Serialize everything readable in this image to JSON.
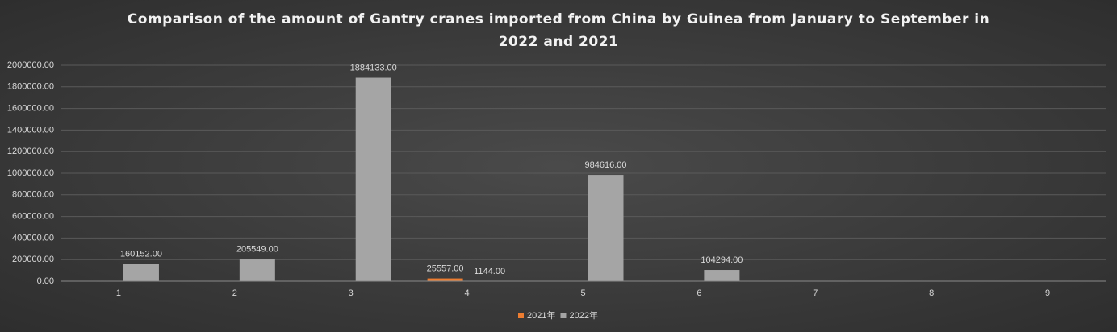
{
  "chart_data": {
    "type": "bar",
    "title": "Comparison of the amount of Gantry cranes imported from China by Guinea from January to September in 2022 and 2021",
    "categories": [
      "1",
      "2",
      "3",
      "4",
      "5",
      "6",
      "7",
      "8",
      "9"
    ],
    "series": [
      {
        "name": "2021年",
        "color": "#ed7d31",
        "values": [
          null,
          null,
          null,
          25557,
          null,
          null,
          null,
          null,
          null
        ],
        "value_labels": [
          null,
          null,
          null,
          "25557.00",
          null,
          null,
          null,
          null,
          null
        ]
      },
      {
        "name": "2022年",
        "color": "#a5a5a5",
        "values": [
          160152,
          205549,
          1884133,
          1144,
          984616,
          104294,
          null,
          null,
          null
        ],
        "value_labels": [
          "160152.00",
          "205549.00",
          "1884133.00",
          "1144.00",
          "984616.00",
          "104294.00",
          null,
          null,
          null
        ]
      }
    ],
    "ylim": [
      0,
      2000000
    ],
    "yticks": [
      {
        "value": 0,
        "label": "0.00"
      },
      {
        "value": 200000,
        "label": "200000.00"
      },
      {
        "value": 400000,
        "label": "400000.00"
      },
      {
        "value": 600000,
        "label": "600000.00"
      },
      {
        "value": 800000,
        "label": "800000.00"
      },
      {
        "value": 1000000,
        "label": "1000000.00"
      },
      {
        "value": 1200000,
        "label": "1200000.00"
      },
      {
        "value": 1400000,
        "label": "1400000.00"
      },
      {
        "value": 1600000,
        "label": "1600000.00"
      },
      {
        "value": 1800000,
        "label": "1800000.00"
      },
      {
        "value": 2000000,
        "label": "2000000.00"
      }
    ],
    "grid": true,
    "legend": "bottom"
  }
}
